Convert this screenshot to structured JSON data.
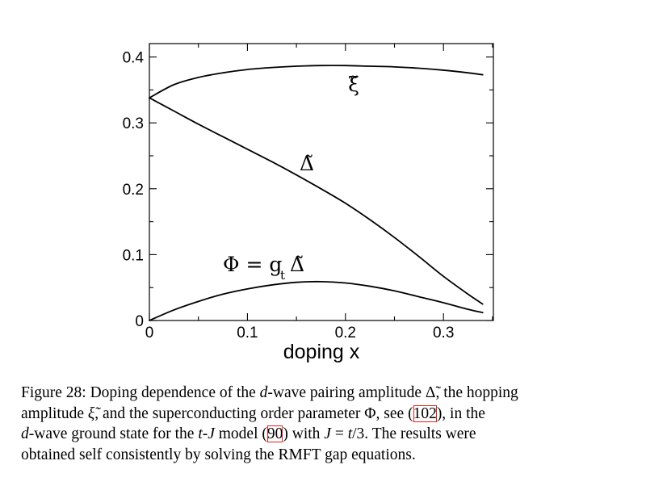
{
  "chart_data": {
    "type": "line",
    "xlabel": "doping x",
    "ylabel": "",
    "xlim": [
      0,
      0.35
    ],
    "ylim": [
      0,
      0.41
    ],
    "x_ticks": [
      "0",
      "0.1",
      "0.2",
      "0.3"
    ],
    "x_tick_values": [
      0,
      0.1,
      0.2,
      0.3
    ],
    "y_ticks": [
      "0",
      "0.1",
      "0.2",
      "0.3",
      "0.4"
    ],
    "y_tick_values": [
      0,
      0.1,
      0.2,
      0.3,
      0.4
    ],
    "grid": false,
    "series": [
      {
        "name": "ξ̃",
        "x": [
          0,
          0.025,
          0.05,
          0.075,
          0.1,
          0.125,
          0.15,
          0.175,
          0.2,
          0.225,
          0.25,
          0.275,
          0.3,
          0.325,
          0.34
        ],
        "y": [
          0.338,
          0.358,
          0.369,
          0.376,
          0.381,
          0.384,
          0.386,
          0.387,
          0.387,
          0.386,
          0.385,
          0.383,
          0.38,
          0.376,
          0.373
        ]
      },
      {
        "name": "Δ̃",
        "x": [
          0,
          0.025,
          0.05,
          0.075,
          0.1,
          0.125,
          0.15,
          0.175,
          0.2,
          0.225,
          0.25,
          0.275,
          0.3,
          0.325,
          0.34
        ],
        "y": [
          0.338,
          0.318,
          0.298,
          0.279,
          0.26,
          0.241,
          0.221,
          0.2,
          0.178,
          0.153,
          0.126,
          0.097,
          0.067,
          0.04,
          0.025
        ]
      },
      {
        "name": "Φ = g",
        "x": [
          0,
          0.025,
          0.05,
          0.075,
          0.1,
          0.125,
          0.15,
          0.175,
          0.2,
          0.225,
          0.25,
          0.275,
          0.3,
          0.325,
          0.34
        ],
        "y": [
          0.0,
          0.016,
          0.029,
          0.04,
          0.048,
          0.054,
          0.058,
          0.059,
          0.057,
          0.052,
          0.045,
          0.036,
          0.027,
          0.017,
          0.012
        ]
      }
    ],
    "curve_labels": {
      "xi": "ξ̃",
      "delta": "Δ̃",
      "phi_main": "Φ = g",
      "phi_sub": "t",
      "phi_delta": "Δ̃"
    }
  },
  "caption": {
    "line1_a": "Figure 28: Doping dependence of the ",
    "line1_b": "d",
    "line1_c": "-wave pairing amplitude Δ̃, the hopping",
    "line2_a": "amplitude ",
    "line2_b": "ξ̃",
    "line2_c": ", and the superconducting order parameter Φ, see (",
    "line2_cite": "102",
    "line2_d": "), in the",
    "line3_a": "d",
    "line3_b": "-wave ground state for the ",
    "line3_c": "t",
    "line3_d": "-",
    "line3_e": "J",
    "line3_f": " model (",
    "line3_cite": "90",
    "line3_g": ") with ",
    "line3_h": "J",
    "line3_i": " = ",
    "line3_j": "t",
    "line3_k": "/3.  The results were",
    "line4": "obtained self consistently by solving the RMFT gap equations."
  }
}
